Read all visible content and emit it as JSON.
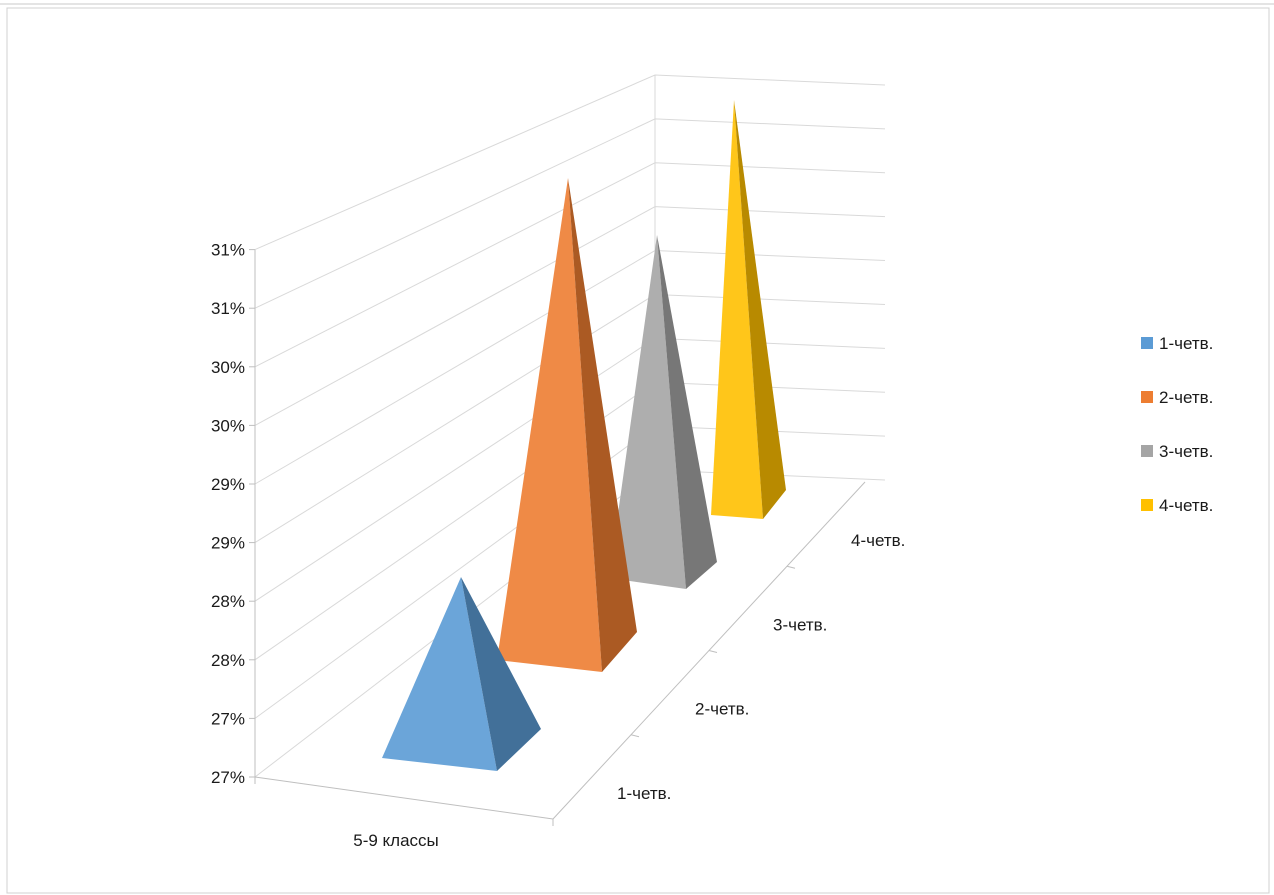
{
  "chart_data": {
    "type": "bar",
    "subtype": "3d-pyramid",
    "title": "",
    "category_label": "5-9 классы",
    "depth_labels": [
      "1-четв.",
      "2-четв.",
      "3-четв.",
      "4-четв."
    ],
    "y_tick_labels": [
      "27%",
      "27%",
      "28%",
      "28%",
      "29%",
      "29%",
      "30%",
      "30%",
      "31%",
      "31%"
    ],
    "ylim": [
      0.27,
      0.3125
    ],
    "series": [
      {
        "name": "1-четв.",
        "values": [
          0.2805
        ],
        "color": "#5b9bd5"
      },
      {
        "name": "2-четв.",
        "values": [
          0.303
        ],
        "color": "#ed7d31"
      },
      {
        "name": "3-четв.",
        "values": [
          0.294
        ],
        "color": "#a5a5a5"
      },
      {
        "name": "4-четв.",
        "values": [
          0.304
        ],
        "color": "#ffc000"
      }
    ],
    "grid": true,
    "legend_position": "right"
  }
}
